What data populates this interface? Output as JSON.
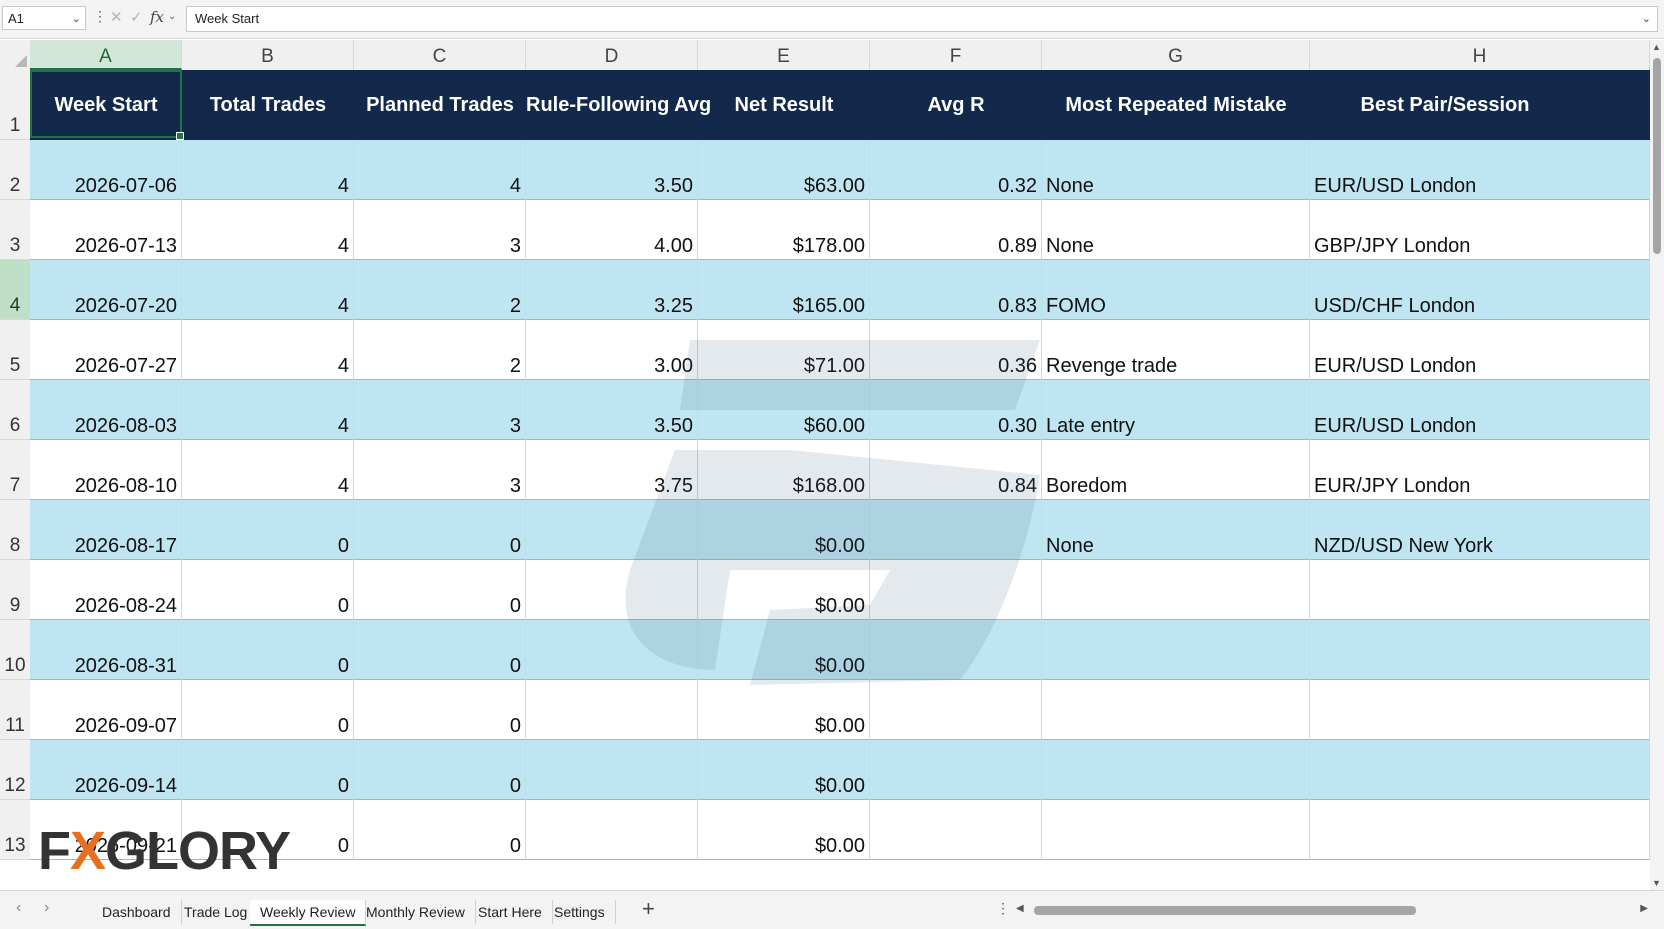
{
  "formula_bar": {
    "name_box": "A1",
    "cancel_icon": "✕",
    "enter_icon": "✓",
    "fx_label": "fx",
    "content": "Week Start"
  },
  "columns": [
    "A",
    "B",
    "C",
    "D",
    "E",
    "F",
    "G",
    "H"
  ],
  "selected_cell": "A1",
  "header_row": {
    "row_number": "1",
    "cells": [
      "Week Start",
      "Total Trades",
      "Planned Trades",
      "Rule-Following Avg",
      "Net Result",
      "Avg R",
      "Most Repeated Mistake",
      "Best Pair/Session"
    ]
  },
  "rows": [
    {
      "n": "2",
      "week": "2026-07-06",
      "total": "4",
      "planned": "4",
      "rule": "3.50",
      "net": "$63.00",
      "avgr": "0.32",
      "mistake": "None",
      "pair": "EUR/USD London"
    },
    {
      "n": "3",
      "week": "2026-07-13",
      "total": "4",
      "planned": "3",
      "rule": "4.00",
      "net": "$178.00",
      "avgr": "0.89",
      "mistake": "None",
      "pair": "GBP/JPY London"
    },
    {
      "n": "4",
      "week": "2026-07-20",
      "total": "4",
      "planned": "2",
      "rule": "3.25",
      "net": "$165.00",
      "avgr": "0.83",
      "mistake": "FOMO",
      "pair": "USD/CHF London"
    },
    {
      "n": "5",
      "week": "2026-07-27",
      "total": "4",
      "planned": "2",
      "rule": "3.00",
      "net": "$71.00",
      "avgr": "0.36",
      "mistake": "Revenge trade",
      "pair": "EUR/USD London"
    },
    {
      "n": "6",
      "week": "2026-08-03",
      "total": "4",
      "planned": "3",
      "rule": "3.50",
      "net": "$60.00",
      "avgr": "0.30",
      "mistake": "Late entry",
      "pair": "EUR/USD London"
    },
    {
      "n": "7",
      "week": "2026-08-10",
      "total": "4",
      "planned": "3",
      "rule": "3.75",
      "net": "$168.00",
      "avgr": "0.84",
      "mistake": "Boredom",
      "pair": "EUR/JPY London"
    },
    {
      "n": "8",
      "week": "2026-08-17",
      "total": "0",
      "planned": "0",
      "rule": "",
      "net": "$0.00",
      "avgr": "",
      "mistake": "None",
      "pair": "NZD/USD New York"
    },
    {
      "n": "9",
      "week": "2026-08-24",
      "total": "0",
      "planned": "0",
      "rule": "",
      "net": "$0.00",
      "avgr": "",
      "mistake": "",
      "pair": ""
    },
    {
      "n": "10",
      "week": "2026-08-31",
      "total": "0",
      "planned": "0",
      "rule": "",
      "net": "$0.00",
      "avgr": "",
      "mistake": "",
      "pair": ""
    },
    {
      "n": "11",
      "week": "2026-09-07",
      "total": "0",
      "planned": "0",
      "rule": "",
      "net": "$0.00",
      "avgr": "",
      "mistake": "",
      "pair": ""
    },
    {
      "n": "12",
      "week": "2026-09-14",
      "total": "0",
      "planned": "0",
      "rule": "",
      "net": "$0.00",
      "avgr": "",
      "mistake": "",
      "pair": ""
    },
    {
      "n": "13",
      "week": "2026-09-21",
      "total": "0",
      "planned": "0",
      "rule": "",
      "net": "$0.00",
      "avgr": "",
      "mistake": "",
      "pair": ""
    }
  ],
  "highlighted_row": "4",
  "logo": {
    "text": "FXGLORY"
  },
  "tabs": {
    "items": [
      "Dashboard",
      "Trade Log",
      "Weekly Review",
      "Monthly Review",
      "Start Here",
      "Settings"
    ],
    "active": "Weekly Review",
    "add_label": "+"
  },
  "colors": {
    "header_bg": "#13294b",
    "band_bg": "#bfe5f3",
    "selection": "#217346",
    "logo_accent": "#e5711f"
  }
}
